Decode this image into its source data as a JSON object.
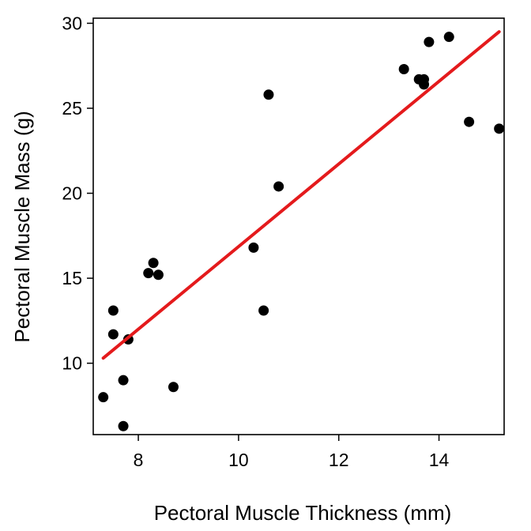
{
  "chart_data": {
    "type": "scatter",
    "title": "",
    "xlabel": "Pectoral Muscle Thickness (mm)",
    "ylabel": "Pectoral Muscle Mass (g)",
    "xlim": [
      7.1,
      15.3
    ],
    "ylim": [
      5.8,
      30.3
    ],
    "x_ticks": [
      8,
      10,
      12,
      14
    ],
    "y_ticks": [
      10,
      15,
      20,
      25,
      30
    ],
    "x_tick_labels": [
      "8",
      "10",
      "12",
      "14"
    ],
    "y_tick_labels": [
      "10",
      "15",
      "20",
      "25",
      "30"
    ],
    "grid": false,
    "legend": "none",
    "point_color": "#000000",
    "line_color": "#e41a1c",
    "points": [
      {
        "x": 7.3,
        "y": 8.0
      },
      {
        "x": 7.5,
        "y": 13.1
      },
      {
        "x": 7.5,
        "y": 11.7
      },
      {
        "x": 7.7,
        "y": 9.0
      },
      {
        "x": 7.7,
        "y": 6.3
      },
      {
        "x": 7.8,
        "y": 11.4
      },
      {
        "x": 8.2,
        "y": 15.3
      },
      {
        "x": 8.3,
        "y": 15.9
      },
      {
        "x": 8.4,
        "y": 15.2
      },
      {
        "x": 8.7,
        "y": 8.6
      },
      {
        "x": 10.3,
        "y": 16.8
      },
      {
        "x": 10.5,
        "y": 13.1
      },
      {
        "x": 10.6,
        "y": 25.8
      },
      {
        "x": 10.8,
        "y": 20.4
      },
      {
        "x": 13.3,
        "y": 27.3
      },
      {
        "x": 13.6,
        "y": 26.7
      },
      {
        "x": 13.7,
        "y": 26.7
      },
      {
        "x": 13.7,
        "y": 26.4
      },
      {
        "x": 13.8,
        "y": 28.9
      },
      {
        "x": 14.2,
        "y": 29.2
      },
      {
        "x": 14.6,
        "y": 24.2
      },
      {
        "x": 15.2,
        "y": 23.8
      }
    ],
    "fit_line": {
      "x": [
        7.3,
        15.2
      ],
      "y": [
        10.3,
        29.5
      ]
    }
  }
}
